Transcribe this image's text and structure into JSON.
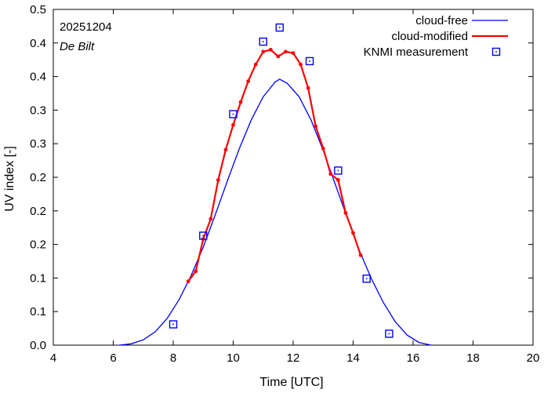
{
  "chart_data": {
    "type": "line",
    "xlabel": "Time  [UTC]",
    "ylabel": "UV index  [-]",
    "xlim": [
      4,
      20
    ],
    "ylim": [
      0,
      0.5
    ],
    "x_ticks": [
      4,
      6,
      8,
      10,
      12,
      14,
      16,
      18,
      20
    ],
    "y_tick_values": [
      0.0,
      0.05,
      0.1,
      0.15,
      0.2,
      0.25,
      0.3,
      0.35,
      0.4,
      0.45,
      0.5
    ],
    "y_tick_labels": [
      "0.0",
      "0.1",
      "0.1",
      "0.2",
      "0.2",
      "0.2",
      "0.3",
      "0.3",
      "0.4",
      "0.4",
      "0.5"
    ],
    "annotations": {
      "date": "20251204",
      "location": "De Bilt"
    },
    "legend": {
      "position": "top-right"
    },
    "series": [
      {
        "name": "cloud-free",
        "style": "line",
        "color": "#0000ff",
        "x": [
          6.2,
          6.6,
          7.0,
          7.4,
          7.8,
          8.2,
          8.6,
          9.0,
          9.4,
          9.8,
          10.2,
          10.6,
          11.0,
          11.4,
          11.55,
          11.8,
          12.2,
          12.6,
          13.0,
          13.4,
          13.8,
          14.2,
          14.6,
          15.0,
          15.4,
          15.8,
          16.2,
          16.6
        ],
        "y": [
          0.0,
          0.002,
          0.008,
          0.02,
          0.04,
          0.068,
          0.104,
          0.146,
          0.194,
          0.244,
          0.292,
          0.335,
          0.37,
          0.392,
          0.396,
          0.39,
          0.37,
          0.335,
          0.29,
          0.24,
          0.19,
          0.142,
          0.1,
          0.064,
          0.035,
          0.015,
          0.004,
          0.0
        ]
      },
      {
        "name": "cloud-modified",
        "style": "line-points",
        "color": "#ff0000",
        "x": [
          8.5,
          8.75,
          9.0,
          9.25,
          9.5,
          9.75,
          10.0,
          10.25,
          10.5,
          10.75,
          11.0,
          11.25,
          11.5,
          11.75,
          12.0,
          12.25,
          12.5,
          12.75,
          13.0,
          13.25,
          13.5,
          13.75,
          14.0,
          14.25
        ],
        "y": [
          0.095,
          0.11,
          0.158,
          0.188,
          0.246,
          0.291,
          0.328,
          0.362,
          0.393,
          0.418,
          0.437,
          0.44,
          0.43,
          0.437,
          0.435,
          0.418,
          0.383,
          0.326,
          0.293,
          0.255,
          0.246,
          0.197,
          0.167,
          0.134
        ]
      },
      {
        "name": "KNMI measurement",
        "style": "points",
        "color": "#0000ff",
        "x": [
          8.0,
          9.0,
          10.0,
          11.0,
          11.55,
          12.55,
          13.5,
          14.45,
          15.2
        ],
        "y": [
          0.031,
          0.163,
          0.344,
          0.452,
          0.473,
          0.423,
          0.26,
          0.099,
          0.017
        ]
      }
    ]
  }
}
